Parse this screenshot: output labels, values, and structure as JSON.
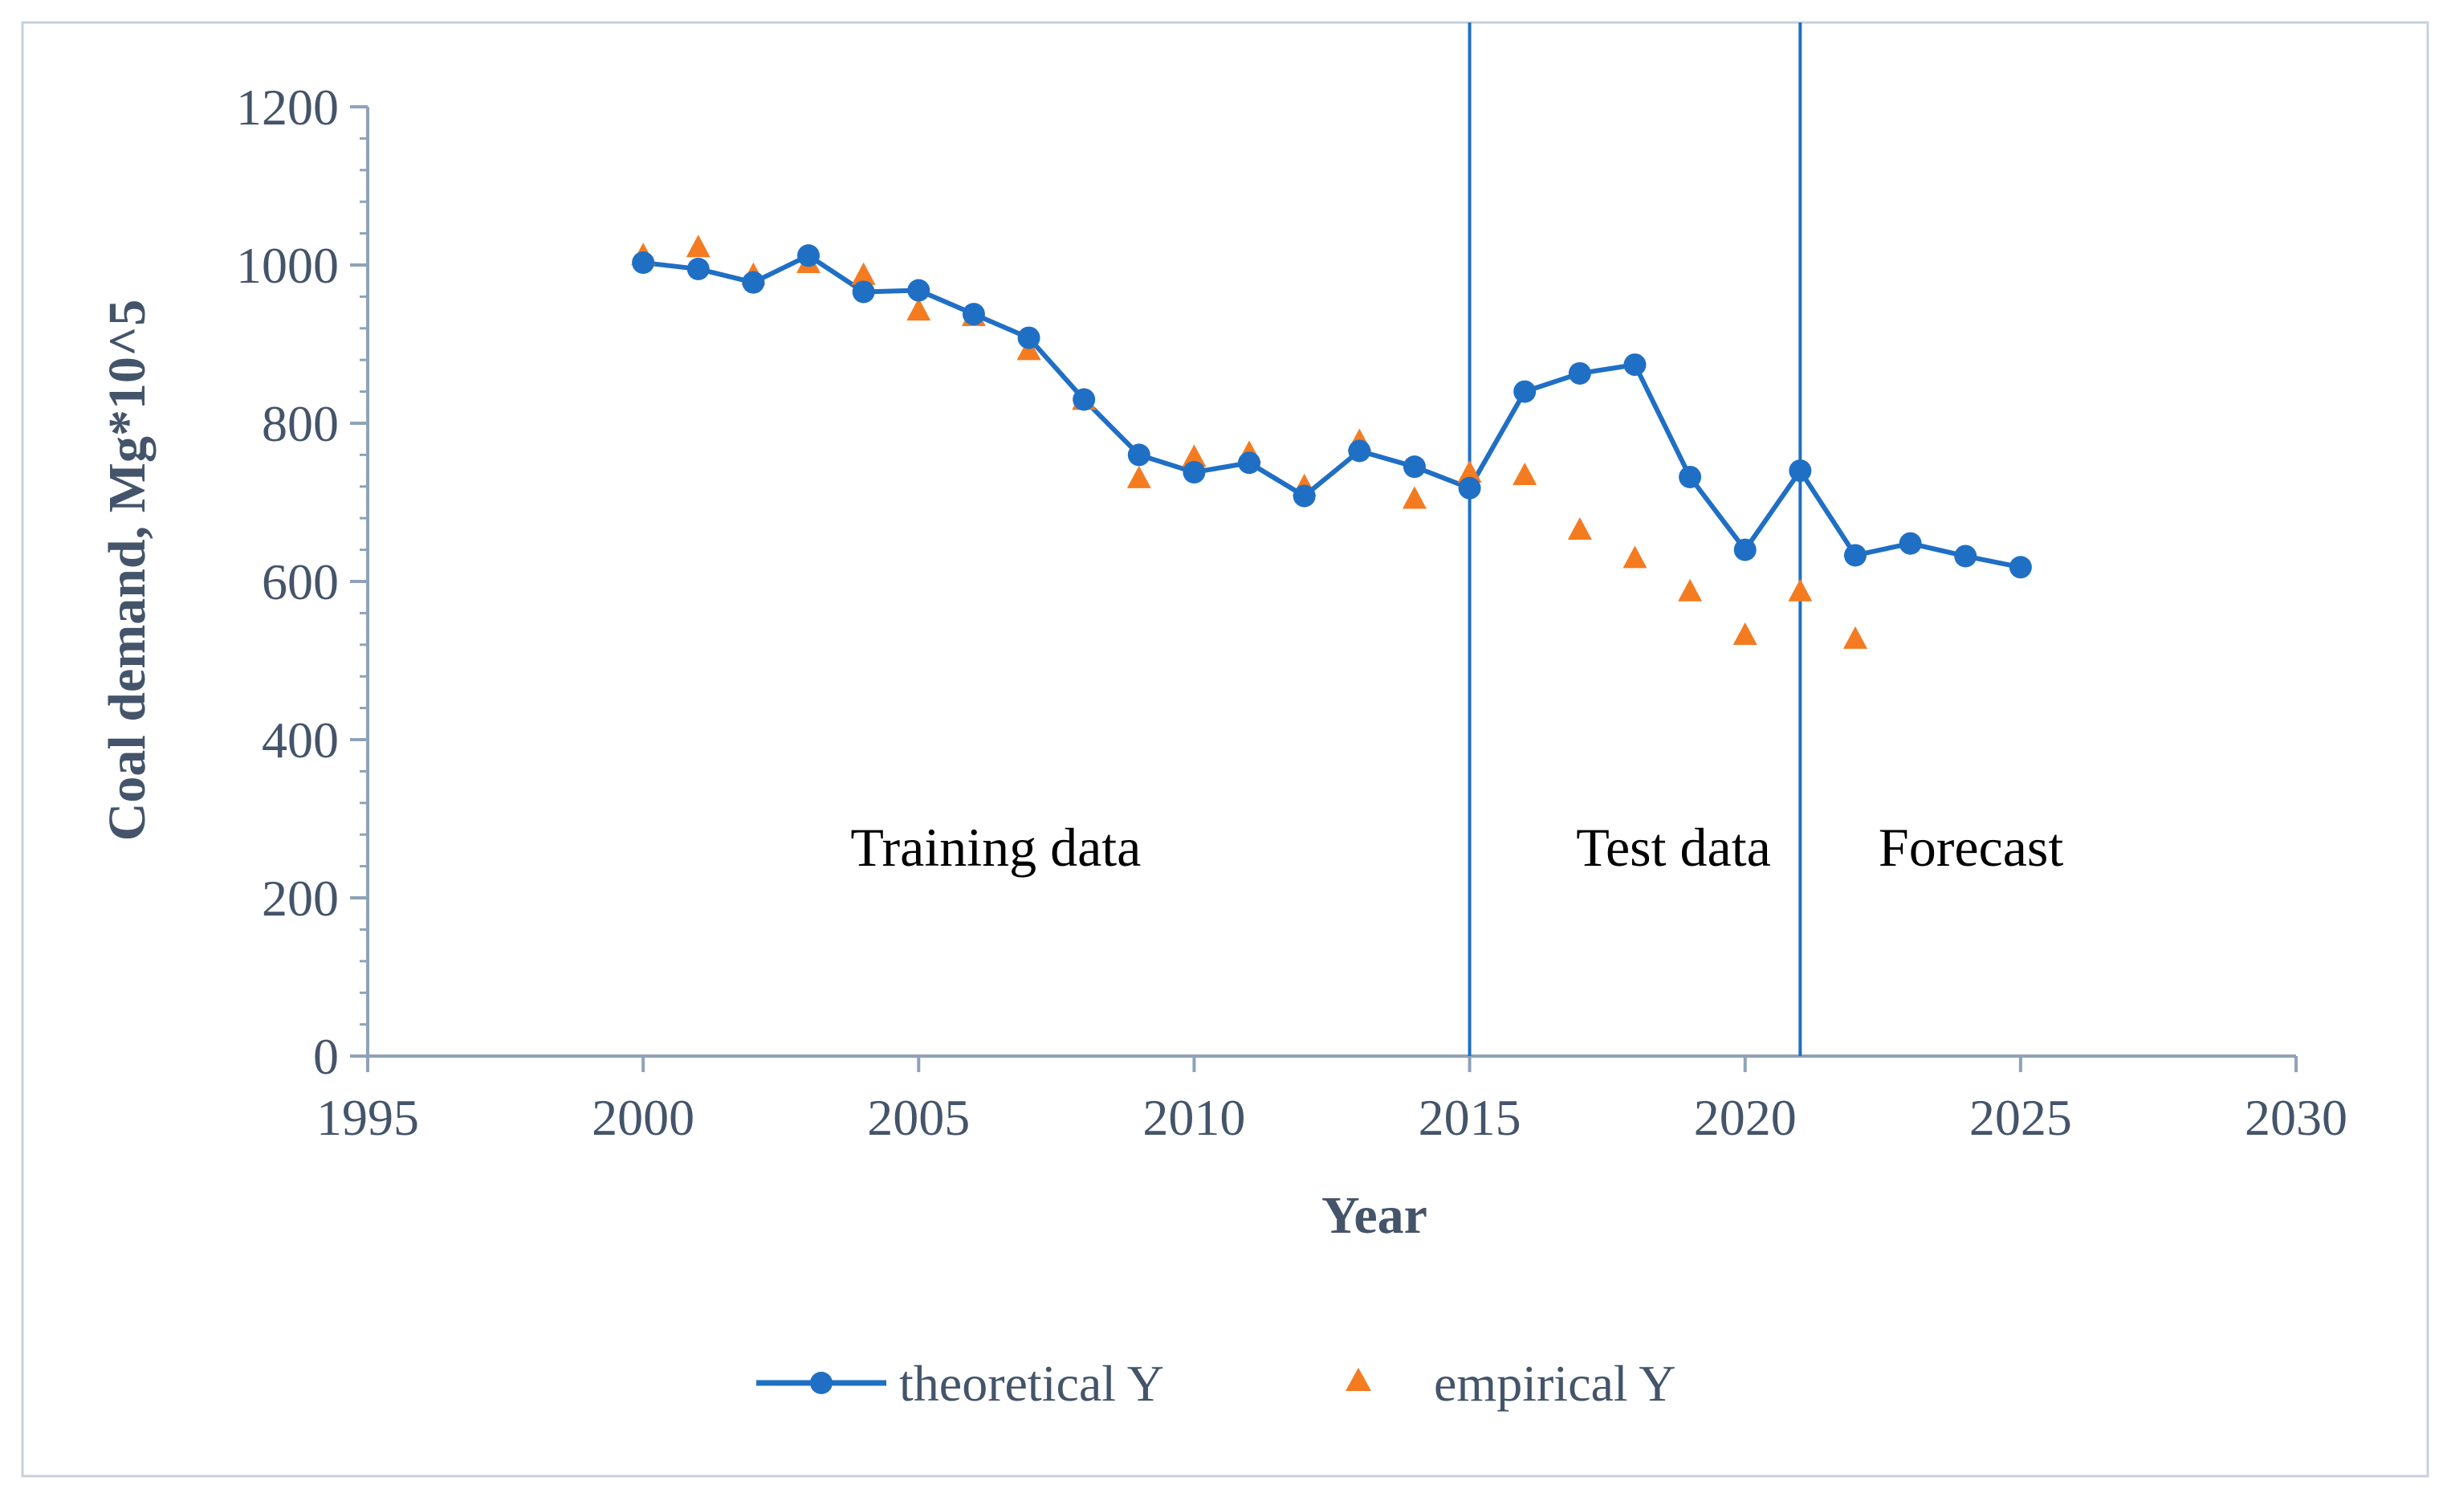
{
  "chart_data": {
    "type": "line",
    "title": "",
    "xlabel": "Year",
    "ylabel": "Coal demand, Mg*10^5",
    "xlim": [
      1995,
      2030
    ],
    "ylim": [
      0,
      1200
    ],
    "x_ticks": [
      1995,
      2000,
      2005,
      2010,
      2015,
      2020,
      2025,
      2030
    ],
    "y_ticks": [
      0,
      200,
      400,
      600,
      800,
      1000,
      1200
    ],
    "grid": false,
    "legend_position": "bottom",
    "colors": {
      "theoretical": "#1f6fc5",
      "empirical": "#f47b20",
      "axis": "#8fa2b8",
      "text": "#44546a",
      "frame": "#c7d0dc"
    },
    "series": [
      {
        "name": "theoretical Y",
        "marker": "circle",
        "x": [
          2000,
          2001,
          2002,
          2003,
          2004,
          2005,
          2006,
          2007,
          2008,
          2009,
          2010,
          2011,
          2012,
          2013,
          2014,
          2015,
          2016,
          2017,
          2018,
          2019,
          2020,
          2021,
          2022,
          2023,
          2024,
          2025
        ],
        "values": [
          1003,
          995,
          978,
          1012,
          966,
          968,
          938,
          908,
          830,
          760,
          738,
          750,
          708,
          765,
          745,
          718,
          840,
          863,
          874,
          732,
          640,
          740,
          633,
          648,
          632,
          618
        ]
      },
      {
        "name": "empirical Y",
        "marker": "triangle",
        "x": [
          2000,
          2001,
          2002,
          2003,
          2004,
          2005,
          2006,
          2007,
          2008,
          2009,
          2010,
          2011,
          2012,
          2013,
          2014,
          2015,
          2016,
          2017,
          2018,
          2019,
          2020,
          2021,
          2022
        ],
        "values": [
          1010,
          1020,
          985,
          1000,
          985,
          940,
          933,
          890,
          827,
          728,
          755,
          760,
          718,
          775,
          702,
          735,
          732,
          663,
          627,
          585,
          530,
          585,
          525
        ]
      }
    ],
    "vertical_lines": [
      2015,
      2021
    ],
    "annotations": [
      {
        "text": "Training data",
        "x": 2006.4
      },
      {
        "text": "Test  data",
        "x": 2018.7
      },
      {
        "text": "Forecast",
        "x": 2024.1
      }
    ]
  }
}
